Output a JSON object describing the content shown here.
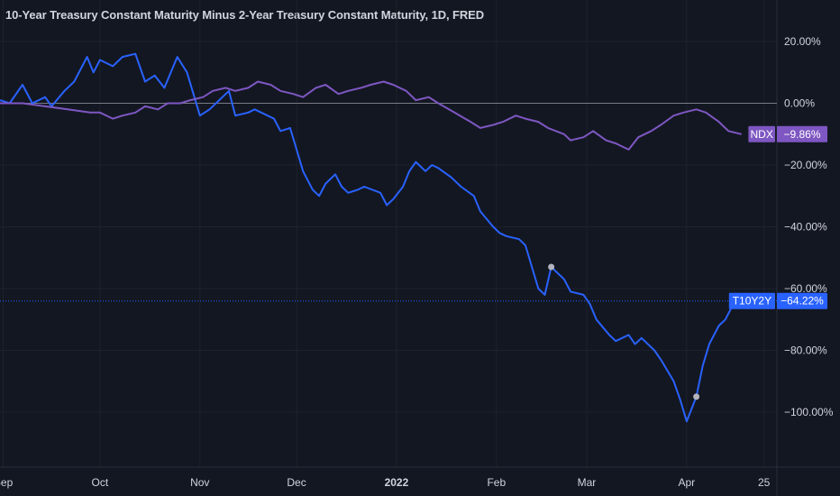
{
  "header": {
    "title": "10-Year Treasury Constant Maturity Minus 2-Year Treasury Constant Maturity, 1D, FRED"
  },
  "colors": {
    "background": "#131722",
    "grid": "#1e222d",
    "text": "#d1d4dc",
    "t10y2y": "#2962ff",
    "ndx": "#7e57c2",
    "zero_line": "#787b86"
  },
  "chart_data": {
    "type": "line",
    "title": "10-Year Treasury Constant Maturity Minus 2-Year Treasury Constant Maturity, 1D, FRED",
    "ylabel": "",
    "xlabel": "",
    "y_unit": "%",
    "ylim": [
      -110,
      30
    ],
    "y_ticks": [
      20,
      0,
      -20,
      -40,
      -60,
      -80,
      -100
    ],
    "y_tick_labels": [
      "20.00%",
      "0.00%",
      "−20.00%",
      "−40.00%",
      "−60.00%",
      "−80.00%",
      "−100.00%"
    ],
    "x_range": [
      "2021-08-31",
      "2022-04-29"
    ],
    "x_ticks": [
      {
        "date": "2021-09-01",
        "label": "Sep",
        "bold": false
      },
      {
        "date": "2021-10-01",
        "label": "Oct",
        "bold": false
      },
      {
        "date": "2021-11-01",
        "label": "Nov",
        "bold": false
      },
      {
        "date": "2021-12-01",
        "label": "Dec",
        "bold": false
      },
      {
        "date": "2022-01-01",
        "label": "2022",
        "bold": true
      },
      {
        "date": "2022-02-01",
        "label": "Feb",
        "bold": false
      },
      {
        "date": "2022-03-01",
        "label": "Mar",
        "bold": false
      },
      {
        "date": "2022-04-01",
        "label": "Apr",
        "bold": false
      },
      {
        "date": "2022-04-25",
        "label": "25",
        "bold": false
      }
    ],
    "grid": true,
    "series": [
      {
        "name": "T10Y2Y",
        "color": "#2962ff",
        "last_label": "−64.22%",
        "points": [
          [
            "2021-08-31",
            1
          ],
          [
            "2021-09-03",
            0
          ],
          [
            "2021-09-07",
            6
          ],
          [
            "2021-09-10",
            0
          ],
          [
            "2021-09-14",
            2
          ],
          [
            "2021-09-16",
            -1
          ],
          [
            "2021-09-20",
            4
          ],
          [
            "2021-09-23",
            7
          ],
          [
            "2021-09-27",
            15
          ],
          [
            "2021-09-29",
            10
          ],
          [
            "2021-10-01",
            14
          ],
          [
            "2021-10-05",
            12
          ],
          [
            "2021-10-08",
            15
          ],
          [
            "2021-10-12",
            16
          ],
          [
            "2021-10-15",
            7
          ],
          [
            "2021-10-18",
            9
          ],
          [
            "2021-10-21",
            5
          ],
          [
            "2021-10-25",
            15
          ],
          [
            "2021-10-28",
            10
          ],
          [
            "2021-11-01",
            -4
          ],
          [
            "2021-11-04",
            -2
          ],
          [
            "2021-11-08",
            2
          ],
          [
            "2021-11-10",
            4
          ],
          [
            "2021-11-12",
            -4
          ],
          [
            "2021-11-16",
            -3
          ],
          [
            "2021-11-18",
            -2
          ],
          [
            "2021-11-22",
            -4
          ],
          [
            "2021-11-24",
            -5
          ],
          [
            "2021-11-26",
            -9
          ],
          [
            "2021-11-29",
            -8
          ],
          [
            "2021-12-01",
            -15
          ],
          [
            "2021-12-03",
            -22
          ],
          [
            "2021-12-06",
            -28
          ],
          [
            "2021-12-08",
            -30
          ],
          [
            "2021-12-10",
            -26
          ],
          [
            "2021-12-13",
            -23
          ],
          [
            "2021-12-15",
            -27
          ],
          [
            "2021-12-17",
            -29
          ],
          [
            "2021-12-20",
            -28
          ],
          [
            "2021-12-22",
            -27
          ],
          [
            "2021-12-27",
            -29
          ],
          [
            "2021-12-29",
            -33
          ],
          [
            "2021-12-31",
            -31
          ],
          [
            "2022-01-03",
            -27
          ],
          [
            "2022-01-05",
            -22
          ],
          [
            "2022-01-07",
            -19
          ],
          [
            "2022-01-10",
            -22
          ],
          [
            "2022-01-12",
            -20
          ],
          [
            "2022-01-14",
            -21
          ],
          [
            "2022-01-18",
            -24
          ],
          [
            "2022-01-21",
            -27
          ],
          [
            "2022-01-25",
            -30
          ],
          [
            "2022-01-27",
            -35
          ],
          [
            "2022-01-31",
            -40
          ],
          [
            "2022-02-02",
            -42
          ],
          [
            "2022-02-04",
            -43
          ],
          [
            "2022-02-08",
            -44
          ],
          [
            "2022-02-10",
            -46
          ],
          [
            "2022-02-14",
            -60
          ],
          [
            "2022-02-16",
            -62
          ],
          [
            "2022-02-18",
            -53
          ],
          [
            "2022-02-22",
            -57
          ],
          [
            "2022-02-24",
            -61
          ],
          [
            "2022-02-28",
            -62
          ],
          [
            "2022-03-02",
            -65
          ],
          [
            "2022-03-04",
            -70
          ],
          [
            "2022-03-08",
            -75
          ],
          [
            "2022-03-10",
            -77
          ],
          [
            "2022-03-14",
            -75
          ],
          [
            "2022-03-16",
            -78
          ],
          [
            "2022-03-18",
            -76
          ],
          [
            "2022-03-22",
            -80
          ],
          [
            "2022-03-24",
            -83
          ],
          [
            "2022-03-28",
            -90
          ],
          [
            "2022-03-30",
            -96
          ],
          [
            "2022-04-01",
            -103
          ],
          [
            "2022-04-04",
            -95
          ],
          [
            "2022-04-06",
            -85
          ],
          [
            "2022-04-08",
            -78
          ],
          [
            "2022-04-11",
            -72
          ],
          [
            "2022-04-13",
            -70
          ],
          [
            "2022-04-15",
            -66
          ],
          [
            "2022-04-18",
            -64
          ]
        ]
      },
      {
        "name": "NDX",
        "color": "#7e57c2",
        "last_label": "−9.86%",
        "points": [
          [
            "2021-08-31",
            0
          ],
          [
            "2021-09-07",
            0
          ],
          [
            "2021-09-14",
            -1
          ],
          [
            "2021-09-21",
            -2
          ],
          [
            "2021-09-28",
            -3
          ],
          [
            "2021-10-01",
            -3
          ],
          [
            "2021-10-05",
            -5
          ],
          [
            "2021-10-08",
            -4
          ],
          [
            "2021-10-12",
            -3
          ],
          [
            "2021-10-15",
            -1
          ],
          [
            "2021-10-19",
            -2
          ],
          [
            "2021-10-22",
            0
          ],
          [
            "2021-10-26",
            0
          ],
          [
            "2021-10-29",
            1
          ],
          [
            "2021-11-02",
            2
          ],
          [
            "2021-11-05",
            4
          ],
          [
            "2021-11-09",
            5
          ],
          [
            "2021-11-12",
            4
          ],
          [
            "2021-11-16",
            5
          ],
          [
            "2021-11-19",
            7
          ],
          [
            "2021-11-23",
            6
          ],
          [
            "2021-11-26",
            4
          ],
          [
            "2021-11-30",
            3
          ],
          [
            "2021-12-03",
            2
          ],
          [
            "2021-12-07",
            5
          ],
          [
            "2021-12-10",
            6
          ],
          [
            "2021-12-14",
            3
          ],
          [
            "2021-12-17",
            4
          ],
          [
            "2021-12-21",
            5
          ],
          [
            "2021-12-24",
            6
          ],
          [
            "2021-12-28",
            7
          ],
          [
            "2021-12-31",
            6
          ],
          [
            "2022-01-04",
            4
          ],
          [
            "2022-01-07",
            1
          ],
          [
            "2022-01-11",
            2
          ],
          [
            "2022-01-14",
            0
          ],
          [
            "2022-01-19",
            -3
          ],
          [
            "2022-01-24",
            -6
          ],
          [
            "2022-01-27",
            -8
          ],
          [
            "2022-01-31",
            -7
          ],
          [
            "2022-02-03",
            -6
          ],
          [
            "2022-02-07",
            -4
          ],
          [
            "2022-02-10",
            -5
          ],
          [
            "2022-02-14",
            -6
          ],
          [
            "2022-02-17",
            -8
          ],
          [
            "2022-02-22",
            -10
          ],
          [
            "2022-02-24",
            -12
          ],
          [
            "2022-02-28",
            -11
          ],
          [
            "2022-03-03",
            -9
          ],
          [
            "2022-03-07",
            -12
          ],
          [
            "2022-03-10",
            -13
          ],
          [
            "2022-03-14",
            -15
          ],
          [
            "2022-03-17",
            -11
          ],
          [
            "2022-03-21",
            -9
          ],
          [
            "2022-03-24",
            -7
          ],
          [
            "2022-03-28",
            -4
          ],
          [
            "2022-03-31",
            -3
          ],
          [
            "2022-04-04",
            -2
          ],
          [
            "2022-04-07",
            -3
          ],
          [
            "2022-04-11",
            -6
          ],
          [
            "2022-04-14",
            -9
          ],
          [
            "2022-04-18",
            -10
          ]
        ]
      }
    ],
    "markers": [
      {
        "series": "T10Y2Y",
        "date": "2022-02-18",
        "value": -53
      },
      {
        "series": "T10Y2Y",
        "date": "2022-04-04",
        "value": -95
      }
    ]
  }
}
